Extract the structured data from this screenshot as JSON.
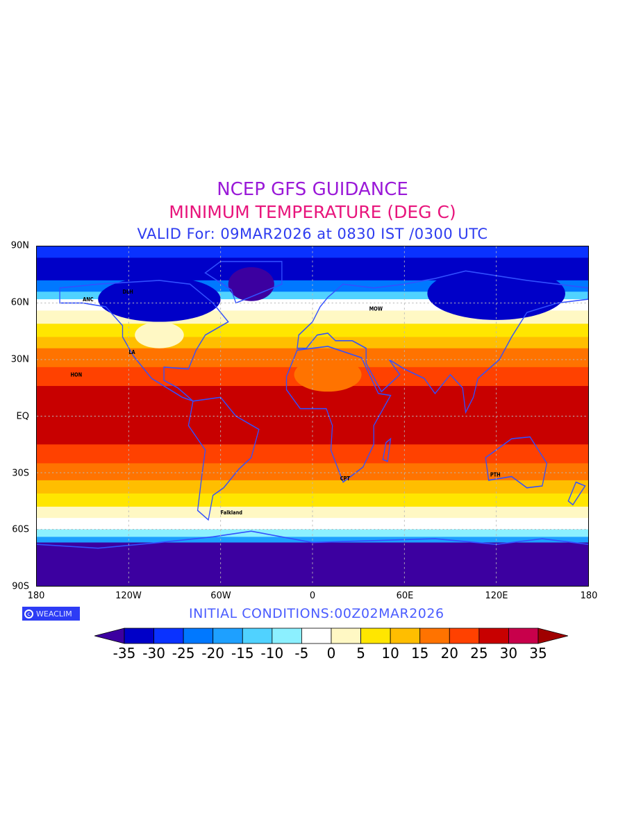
{
  "header": {
    "title": "NCEP GFS GUIDANCE",
    "subtitle": "MINIMUM TEMPERATURE (DEG C)",
    "valid": "VALID For: 09MAR2026 at 0830 IST /0300 UTC"
  },
  "axes": {
    "lat_labels": [
      "90N",
      "60N",
      "30N",
      "EQ",
      "30S",
      "60S",
      "90S"
    ],
    "lon_labels": [
      "180",
      "120W",
      "60W",
      "0",
      "60E",
      "120E",
      "180"
    ]
  },
  "footer": {
    "initial_conditions": "INITIAL CONDITIONS:00Z02MAR2026",
    "logo_text": "WEACLIM"
  },
  "stations": [
    "ANC",
    "DLH",
    "HON",
    "LA",
    "Falkland",
    "MOW",
    "CPT",
    "PTH"
  ],
  "colorbar": {
    "labels": [
      "-35",
      "-30",
      "-25",
      "-20",
      "-15",
      "-10",
      "-5",
      "0",
      "5",
      "10",
      "15",
      "20",
      "25",
      "30",
      "35"
    ],
    "below_color": "#3c00a0",
    "colors": [
      "#0000c8",
      "#0a32ff",
      "#0078ff",
      "#1ea0ff",
      "#50d2ff",
      "#8cf0ff",
      "#ffffff",
      "#fff8c4",
      "#ffe600",
      "#ffbe00",
      "#ff7300",
      "#ff4100",
      "#c80000",
      "#c8004b"
    ],
    "above_color": "#a00000"
  }
}
